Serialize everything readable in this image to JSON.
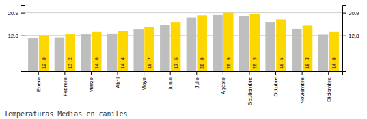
{
  "chart_data": {
    "type": "bar",
    "title": "Temperaturas Medias en caniles",
    "categories": [
      "Enero",
      "Febrero",
      "Marzo",
      "Abril",
      "Mayo",
      "Junio",
      "Julio",
      "Agosto",
      "Septiembre",
      "Octubre",
      "Noviembre",
      "Diciembre"
    ],
    "series": [
      {
        "color": "#BEBEBE",
        "values": [
          11.8,
          12.1,
          13.2,
          13.5,
          14.9,
          16.6,
          19.2,
          20.1,
          19.7,
          17.6,
          15.2,
          13.1
        ]
      },
      {
        "color": "#FFD700",
        "values": [
          12.8,
          13.2,
          14.0,
          14.4,
          15.7,
          17.6,
          20.0,
          20.9,
          20.5,
          18.5,
          16.3,
          14.0
        ],
        "value_labels": [
          "12.8",
          "13.2",
          "14.0",
          "14.4",
          "15.7",
          "17.6",
          "20.0",
          "20.9",
          "20.5",
          "18.5",
          "16.3",
          "14.0"
        ]
      }
    ],
    "ylim": [
      0.0,
      23.5
    ],
    "yticks": [
      12.8,
      20.9
    ],
    "y2lim": [
      0.0,
      23.5
    ],
    "y2ticks": [
      12.8,
      20.9
    ],
    "grid": true,
    "data_labels": true
  }
}
